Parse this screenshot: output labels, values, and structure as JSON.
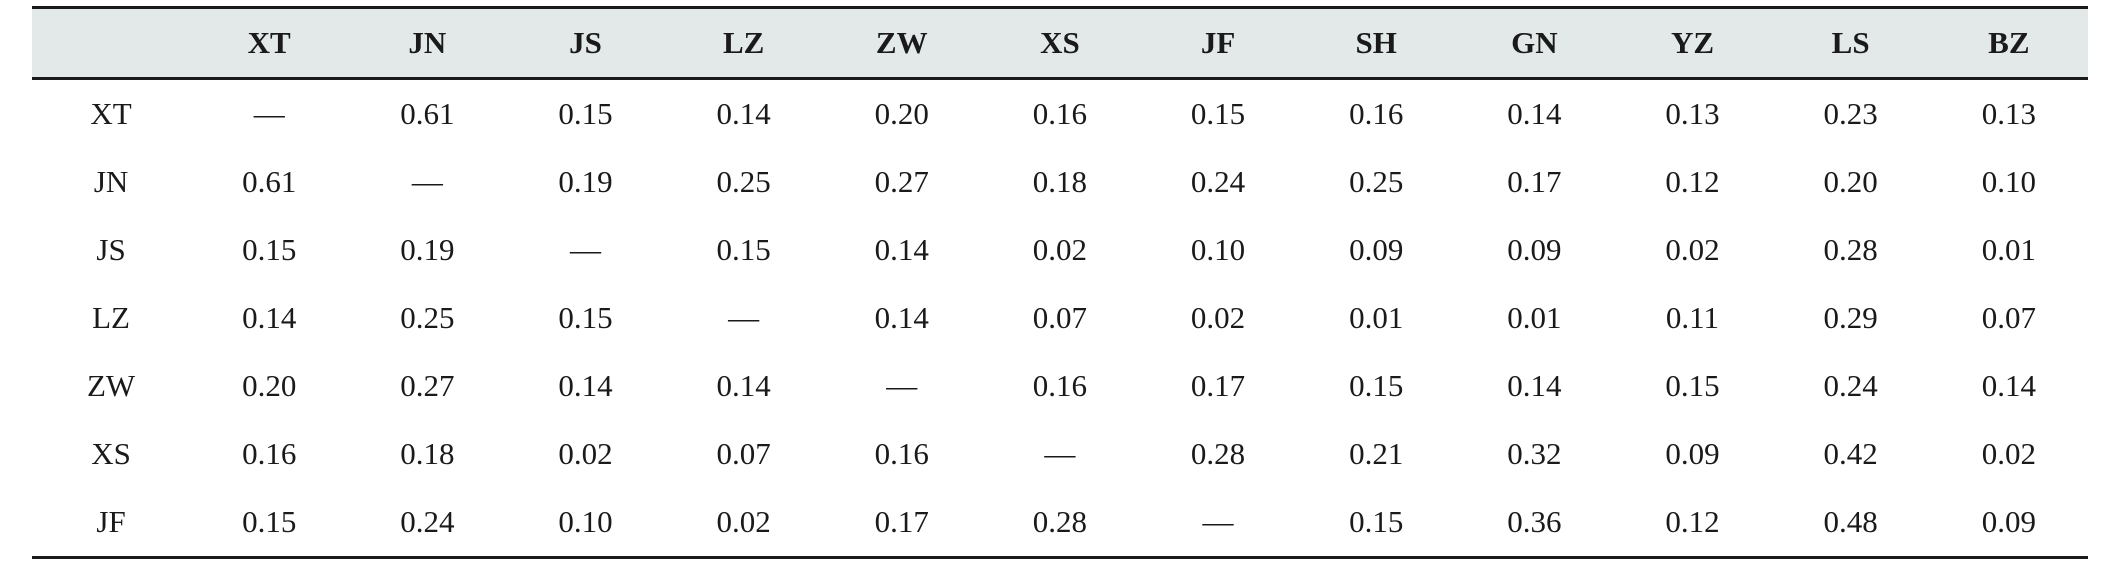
{
  "table": {
    "headers": [
      "",
      "XT",
      "JN",
      "JS",
      "LZ",
      "ZW",
      "XS",
      "JF",
      "SH",
      "GN",
      "YZ",
      "LS",
      "BZ"
    ],
    "rows": [
      [
        "XT",
        "—",
        "0.61",
        "0.15",
        "0.14",
        "0.20",
        "0.16",
        "0.15",
        "0.16",
        "0.14",
        "0.13",
        "0.23",
        "0.13"
      ],
      [
        "JN",
        "0.61",
        "—",
        "0.19",
        "0.25",
        "0.27",
        "0.18",
        "0.24",
        "0.25",
        "0.17",
        "0.12",
        "0.20",
        "0.10"
      ],
      [
        "JS",
        "0.15",
        "0.19",
        "—",
        "0.15",
        "0.14",
        "0.02",
        "0.10",
        "0.09",
        "0.09",
        "0.02",
        "0.28",
        "0.01"
      ],
      [
        "LZ",
        "0.14",
        "0.25",
        "0.15",
        "—",
        "0.14",
        "0.07",
        "0.02",
        "0.01",
        "0.01",
        "0.11",
        "0.29",
        "0.07"
      ],
      [
        "ZW",
        "0.20",
        "0.27",
        "0.14",
        "0.14",
        "—",
        "0.16",
        "0.17",
        "0.15",
        "0.14",
        "0.15",
        "0.24",
        "0.14"
      ],
      [
        "XS",
        "0.16",
        "0.18",
        "0.02",
        "0.07",
        "0.16",
        "—",
        "0.28",
        "0.21",
        "0.32",
        "0.09",
        "0.42",
        "0.02"
      ],
      [
        "JF",
        "0.15",
        "0.24",
        "0.10",
        "0.02",
        "0.17",
        "0.28",
        "—",
        "0.15",
        "0.36",
        "0.12",
        "0.48",
        "0.09"
      ]
    ]
  }
}
